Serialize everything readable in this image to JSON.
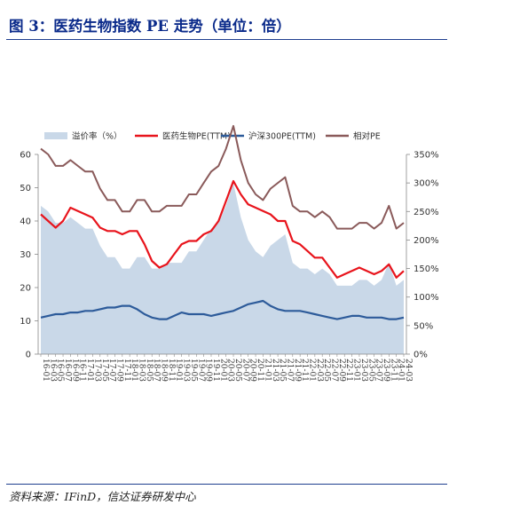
{
  "header": {
    "figure_title": "图 3：医药生物指数 PE 走势（单位：倍）"
  },
  "footer": {
    "source": "资料来源：IFinD，信达证券研发中心"
  },
  "colors": {
    "title": "#0a2a8a",
    "rule": "#1f3f8f",
    "premium_area": "#c9d8e8",
    "pharma_pe": "#e8141c",
    "csi300_pe": "#2d5b9a",
    "relative_pe": "#8a5a5a"
  },
  "chart_data": {
    "type": "line",
    "title": "",
    "xlabel": "",
    "ylabel": "",
    "ylim": [
      0,
      60
    ],
    "y2lim": [
      0,
      3.5
    ],
    "yticks": [
      0,
      10,
      20,
      30,
      40,
      50,
      60
    ],
    "y2ticks": [
      "0%",
      "50%",
      "100%",
      "150%",
      "200%",
      "250%",
      "300%",
      "350%"
    ],
    "legend_position": "top",
    "grid": false,
    "legend": [
      {
        "name": "溢价率（%）",
        "kind": "area",
        "color": "#c9d8e8"
      },
      {
        "name": "医药生物PE(TTM)",
        "kind": "line",
        "color": "#e8141c"
      },
      {
        "name": "沪深300PE(TTM)",
        "kind": "line",
        "color": "#2d5b9a"
      },
      {
        "name": "相对PE",
        "kind": "line",
        "color": "#8a5a5a"
      }
    ],
    "x": [
      "16-01",
      "16-03",
      "16-05",
      "16-07",
      "16-09",
      "16-11",
      "17-01",
      "17-03",
      "17-05",
      "17-07",
      "17-09",
      "17-11",
      "18-01",
      "18-03",
      "18-05",
      "18-07",
      "18-09",
      "18-11",
      "19-01",
      "19-03",
      "19-05",
      "19-07",
      "19-09",
      "19-11",
      "20-01",
      "20-03",
      "20-05",
      "20-07",
      "20-09",
      "20-11",
      "21-01",
      "21-03",
      "21-05",
      "21-07",
      "21-09",
      "21-11",
      "22-01",
      "22-03",
      "22-05",
      "22-07",
      "22-09",
      "22-11",
      "23-01",
      "23-03",
      "23-05",
      "23-07",
      "23-09",
      "23-11",
      "24-01",
      "24-03"
    ],
    "series": [
      {
        "name": "医药生物PE(TTM)",
        "axis": "left",
        "values": [
          42,
          40,
          38,
          40,
          44,
          43,
          42,
          41,
          38,
          37,
          37,
          36,
          37,
          37,
          33,
          28,
          26,
          27,
          30,
          33,
          34,
          34,
          36,
          37,
          40,
          46,
          52,
          48,
          45,
          44,
          43,
          42,
          40,
          40,
          34,
          33,
          31,
          29,
          29,
          26,
          23,
          24,
          25,
          26,
          25,
          24,
          25,
          27,
          23,
          25
        ]
      },
      {
        "name": "沪深300PE(TTM)",
        "axis": "left",
        "values": [
          11,
          11.5,
          12,
          12,
          12.5,
          12.5,
          13,
          13,
          13.5,
          14,
          14,
          14.5,
          14.5,
          13.5,
          12,
          11,
          10.5,
          10.5,
          11.5,
          12.5,
          12,
          12,
          12,
          11.5,
          12,
          12.5,
          13,
          14,
          15,
          15.5,
          16,
          14.5,
          13.5,
          13,
          13,
          13,
          12.5,
          12,
          11.5,
          11,
          10.5,
          11,
          11.5,
          11.5,
          11,
          11,
          11,
          10.5,
          10.5,
          11
        ]
      },
      {
        "name": "相对PE",
        "axis": "right",
        "values": [
          3.6,
          3.5,
          3.3,
          3.3,
          3.4,
          3.3,
          3.2,
          3.2,
          2.9,
          2.7,
          2.7,
          2.5,
          2.5,
          2.7,
          2.7,
          2.5,
          2.5,
          2.6,
          2.6,
          2.6,
          2.8,
          2.8,
          3.0,
          3.2,
          3.3,
          3.6,
          4.0,
          3.4,
          3.0,
          2.8,
          2.7,
          2.9,
          3.0,
          3.1,
          2.6,
          2.5,
          2.5,
          2.4,
          2.5,
          2.4,
          2.2,
          2.2,
          2.2,
          2.3,
          2.3,
          2.2,
          2.3,
          2.6,
          2.2,
          2.3
        ]
      },
      {
        "name": "溢价率（%）",
        "axis": "right",
        "values": [
          2.6,
          2.5,
          2.3,
          2.3,
          2.4,
          2.3,
          2.2,
          2.2,
          1.9,
          1.7,
          1.7,
          1.5,
          1.5,
          1.7,
          1.7,
          1.5,
          1.5,
          1.6,
          1.6,
          1.6,
          1.8,
          1.8,
          2.0,
          2.2,
          2.3,
          2.6,
          3.0,
          2.4,
          2.0,
          1.8,
          1.7,
          1.9,
          2.0,
          2.1,
          1.6,
          1.5,
          1.5,
          1.4,
          1.5,
          1.4,
          1.2,
          1.2,
          1.2,
          1.3,
          1.3,
          1.2,
          1.3,
          1.6,
          1.2,
          1.3
        ]
      }
    ]
  }
}
